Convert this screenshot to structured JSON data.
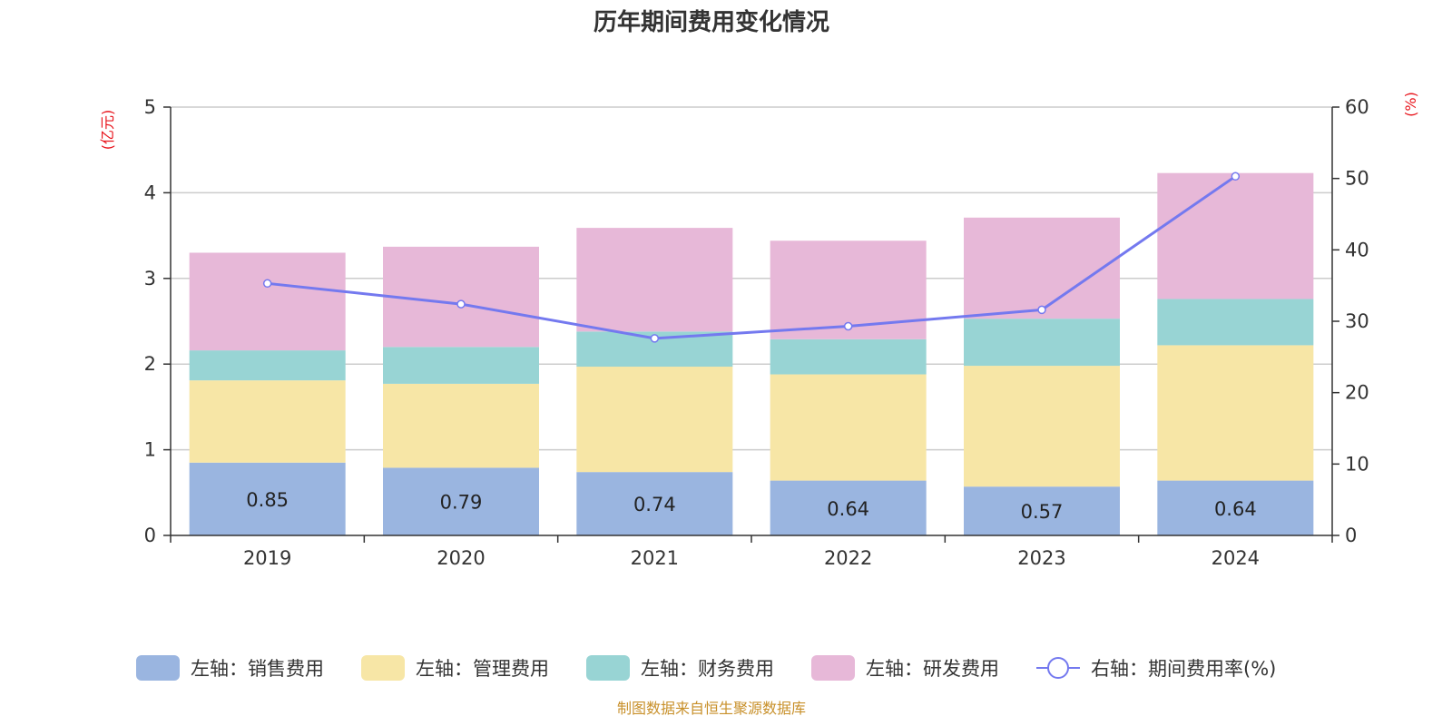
{
  "chart_data": {
    "type": "bar",
    "title": "历年期间费用变化情况",
    "categories": [
      "2019",
      "2020",
      "2021",
      "2022",
      "2023",
      "2024"
    ],
    "y_left": {
      "label": "(亿元)",
      "lim": [
        0,
        5
      ],
      "ticks": [
        0,
        1,
        2,
        3,
        4,
        5
      ]
    },
    "y_right": {
      "label": "(%)",
      "lim": [
        0,
        60
      ],
      "ticks": [
        0,
        10,
        20,
        30,
        40,
        50,
        60
      ]
    },
    "grid": true,
    "legend_position": "bottom",
    "series": [
      {
        "name": "左轴：销售费用",
        "kind": "bar",
        "axis": "left",
        "color": "#9ab5e0",
        "values": [
          0.85,
          0.79,
          0.74,
          0.64,
          0.57,
          0.64
        ],
        "data_labels": [
          "0.85",
          "0.79",
          "0.74",
          "0.64",
          "0.57",
          "0.64"
        ]
      },
      {
        "name": "左轴：管理费用",
        "kind": "bar",
        "axis": "left",
        "color": "#f7e6a6",
        "values": [
          0.96,
          0.98,
          1.23,
          1.24,
          1.41,
          1.58
        ]
      },
      {
        "name": "左轴：财务费用",
        "kind": "bar",
        "axis": "left",
        "color": "#98d4d4",
        "values": [
          0.35,
          0.43,
          0.41,
          0.41,
          0.55,
          0.54
        ]
      },
      {
        "name": "左轴：研发费用",
        "kind": "bar",
        "axis": "left",
        "color": "#e7b8d8",
        "values": [
          1.14,
          1.17,
          1.21,
          1.15,
          1.18,
          1.47
        ]
      },
      {
        "name": "右轴：期间费用率(%)",
        "kind": "line",
        "axis": "right",
        "color": "#7479ef",
        "values": [
          35.3,
          32.4,
          27.6,
          29.3,
          31.6,
          50.3
        ]
      }
    ]
  },
  "source_note": "制图数据来自恒生聚源数据库"
}
